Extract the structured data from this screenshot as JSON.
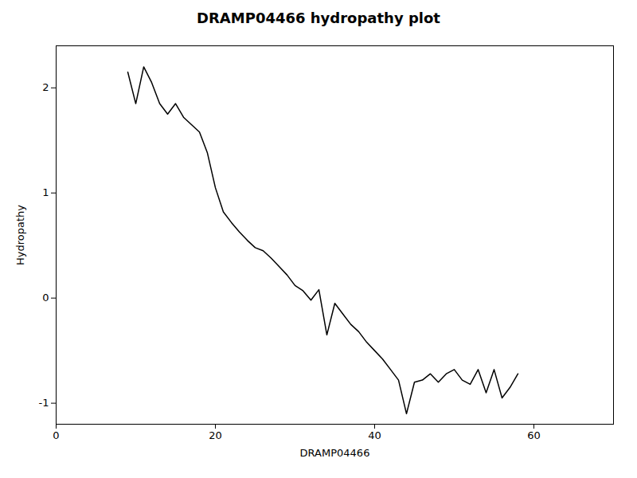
{
  "chart_data": {
    "type": "line",
    "title": "DRAMP04466 hydropathy plot",
    "xlabel": "DRAMP04466",
    "ylabel": "Hydropathy",
    "x": [
      9,
      10,
      11,
      12,
      13,
      14,
      15,
      16,
      17,
      18,
      19,
      20,
      21,
      22,
      23,
      24,
      25,
      26,
      27,
      28,
      29,
      30,
      31,
      32,
      33,
      34,
      35,
      36,
      37,
      38,
      39,
      40,
      41,
      42,
      43,
      44,
      45,
      46,
      47,
      48,
      49,
      50,
      51,
      52,
      53,
      54,
      55,
      56,
      57,
      58
    ],
    "values": [
      2.15,
      1.85,
      2.2,
      2.05,
      1.85,
      1.75,
      1.85,
      1.72,
      1.65,
      1.58,
      1.38,
      1.05,
      0.82,
      0.72,
      0.63,
      0.55,
      0.48,
      0.45,
      0.38,
      0.3,
      0.22,
      0.12,
      0.07,
      -0.02,
      0.08,
      -0.35,
      -0.05,
      -0.15,
      -0.25,
      -0.32,
      -0.42,
      -0.5,
      -0.58,
      -0.68,
      -0.78,
      -1.1,
      -0.8,
      -0.78,
      -0.72,
      -0.8,
      -0.72,
      -0.68,
      -0.78,
      -0.82,
      -0.68,
      -0.9,
      -0.68,
      -0.95,
      -0.85,
      -0.72
    ],
    "color": "black",
    "xlim": [
      0,
      70
    ],
    "ylim": [
      -1.2,
      2.4
    ],
    "xticks": [
      0,
      20,
      40,
      60
    ],
    "yticks": [
      -1,
      0,
      1,
      2
    ],
    "grid": false
  }
}
